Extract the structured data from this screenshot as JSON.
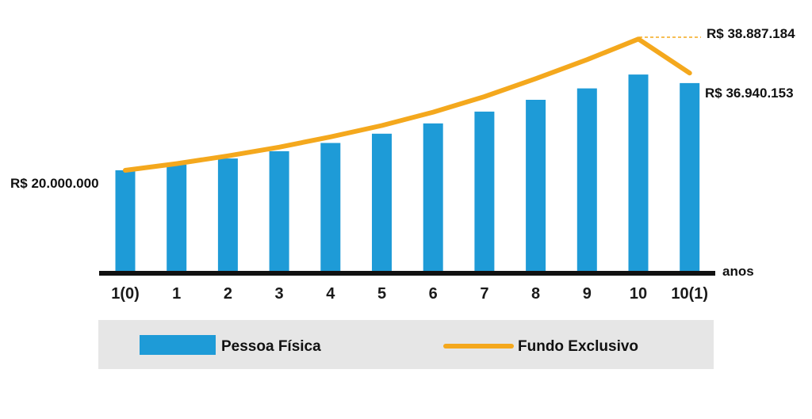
{
  "colors": {
    "bar": "#1e9bd7",
    "line": "#f4a81d",
    "axis": "#111111",
    "legend_bg": "#e6e6e6"
  },
  "chart_data": {
    "type": "bar",
    "categories": [
      "1(0)",
      "1",
      "2",
      "3",
      "4",
      "5",
      "6",
      "7",
      "8",
      "9",
      "10",
      "10(1)"
    ],
    "series": [
      {
        "name": "Pessoa Física",
        "type": "bar",
        "values": [
          20000000,
          21100000,
          22300000,
          23700000,
          25300000,
          27100000,
          29100000,
          31400000,
          33700000,
          35900000,
          38600000,
          36940153
        ]
      },
      {
        "name": "Fundo Exclusivo",
        "type": "line",
        "values": [
          20000000,
          21300000,
          22800000,
          24500000,
          26500000,
          28700000,
          31300000,
          34300000,
          37800000,
          41500000,
          45500000,
          38887184
        ]
      }
    ],
    "x_axis_unit": "anos",
    "ylim": [
      0,
      46000000
    ],
    "grid": false,
    "legend_position": "bottom",
    "annotations": {
      "start": "R$ 20.000.000",
      "line_end": "R$ 38.887.184",
      "bar_end": "R$ 36.940.153"
    }
  }
}
